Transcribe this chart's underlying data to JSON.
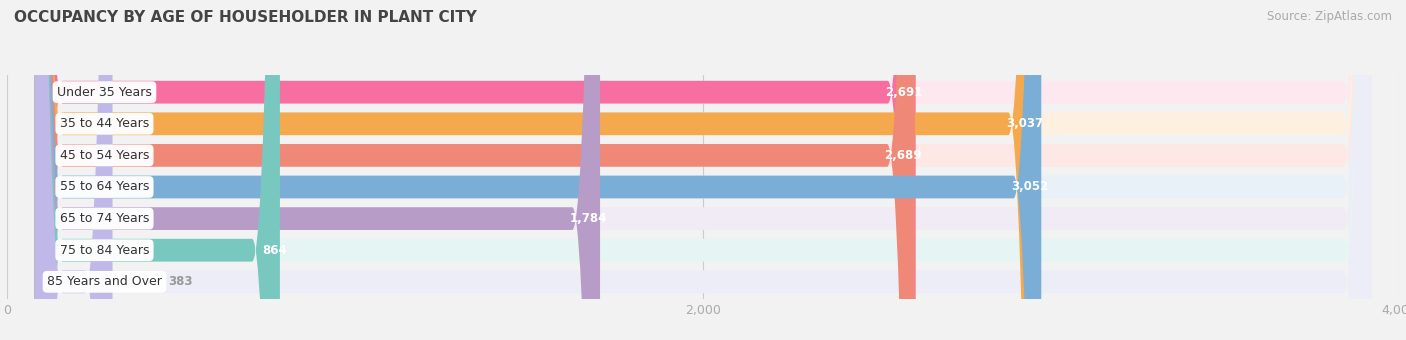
{
  "title": "OCCUPANCY BY AGE OF HOUSEHOLDER IN PLANT CITY",
  "source": "Source: ZipAtlas.com",
  "categories": [
    "Under 35 Years",
    "35 to 44 Years",
    "45 to 54 Years",
    "55 to 64 Years",
    "65 to 74 Years",
    "75 to 84 Years",
    "85 Years and Over"
  ],
  "values": [
    2691,
    3037,
    2689,
    3052,
    1784,
    864,
    383
  ],
  "bar_colors": [
    "#f76fa0",
    "#f5a94e",
    "#f08878",
    "#7aaed6",
    "#b89cc8",
    "#78c8c0",
    "#c0b8e8"
  ],
  "bar_bg_colors": [
    "#fde8ef",
    "#fdf0e0",
    "#fde8e5",
    "#e8f0f8",
    "#f0ebf5",
    "#e5f5f3",
    "#ededf8"
  ],
  "xlim": [
    0,
    4000
  ],
  "xticks": [
    0,
    2000,
    4000
  ],
  "background_color": "#f2f2f2",
  "bar_height": 0.72,
  "title_fontsize": 11,
  "source_fontsize": 8.5,
  "label_fontsize": 9,
  "value_fontsize": 8.5
}
